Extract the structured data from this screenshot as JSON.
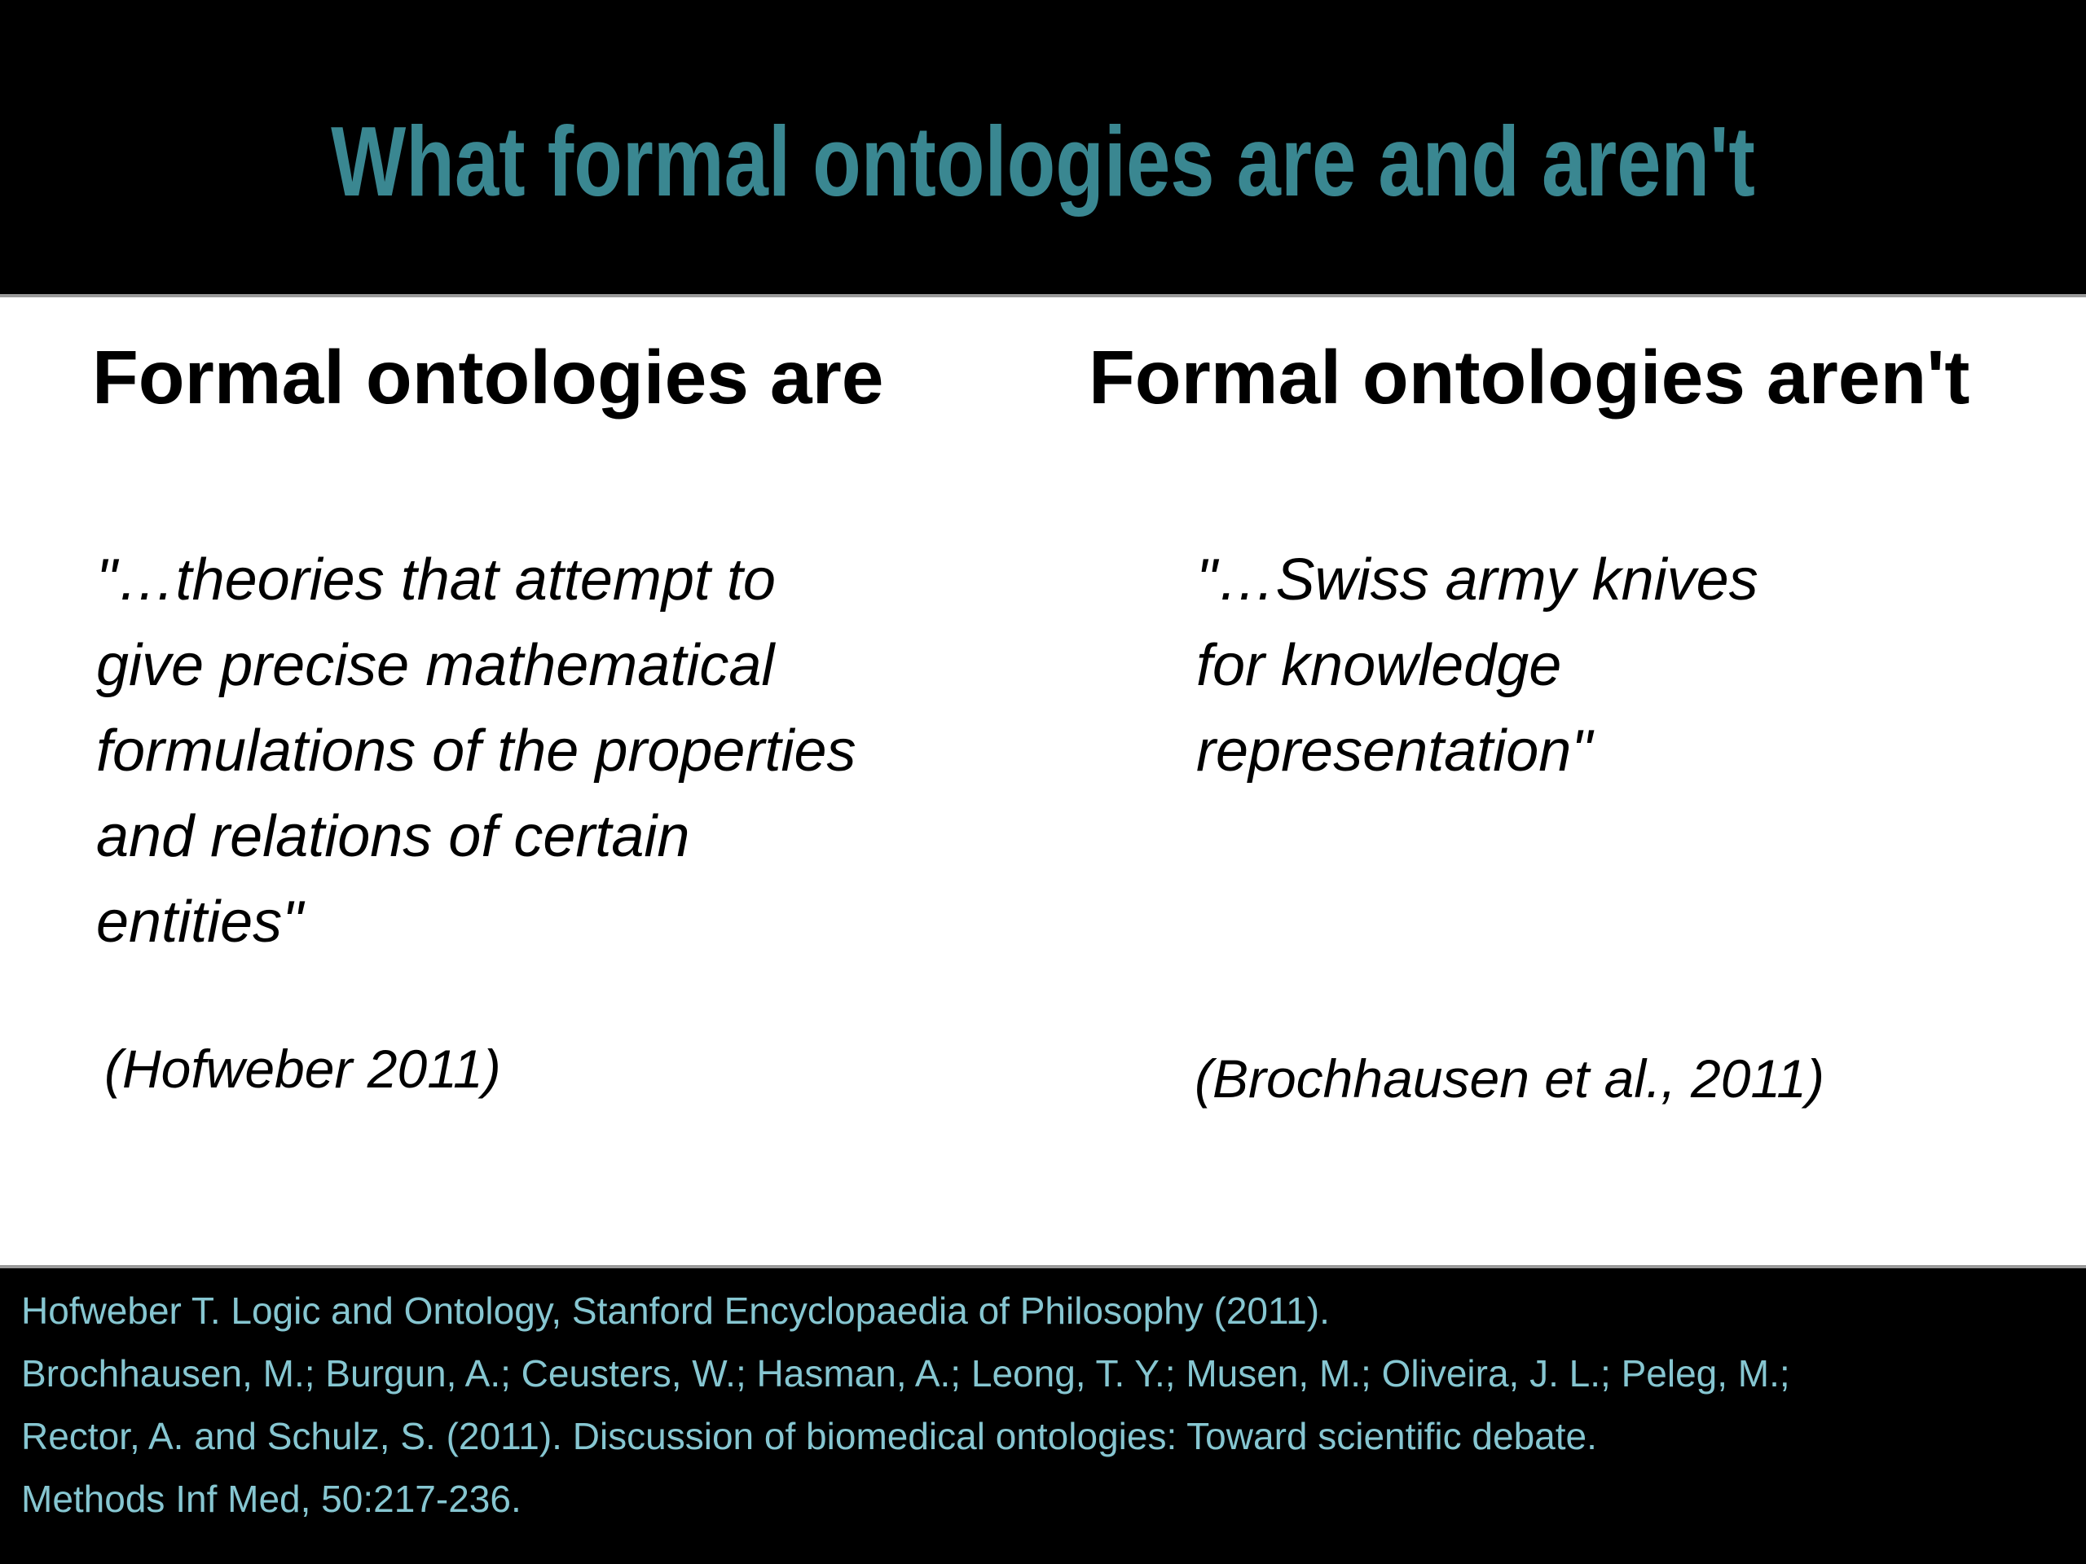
{
  "slide": {
    "title": "What formal ontologies are and aren't",
    "columns": {
      "left": {
        "heading": "Formal ontologies are",
        "quote": "\"…theories that attempt to\ngive precise mathematical\nformulations of the properties\nand relations of certain\nentities\"",
        "citation": "(Hofweber 2011)"
      },
      "right": {
        "heading": "Formal ontologies aren't",
        "quote": "\"…Swiss army knives\nfor knowledge\nrepresentation\"",
        "citation": "(Brochhausen et al., 2011)"
      }
    },
    "footer": {
      "lines": [
        "Hofweber T. Logic and Ontology, Stanford Encyclopaedia of Philosophy (2011).",
        "Brochhausen, M.; Burgun, A.; Ceusters, W.; Hasman, A.; Leong, T. Y.; Musen, M.; Oliveira, J. L.; Peleg, M.;",
        "Rector, A. and Schulz, S. (2011). Discussion of biomedical ontologies: Toward scientific debate.",
        "Methods Inf Med, 50:217-236."
      ]
    },
    "colors": {
      "title_teal": "#3a8791",
      "footer_teal": "#86c6d1",
      "background_black": "#000000",
      "body_white": "#ffffff"
    }
  }
}
